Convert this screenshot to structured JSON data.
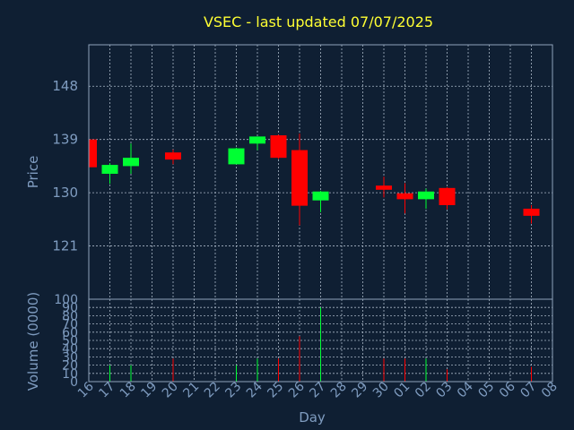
{
  "chart_data": {
    "type": "candlestick",
    "title": "VSEC - last updated 07/07/2025",
    "xlabel": "Day",
    "ylabel": "Price",
    "volume_label": "Volume (0000)",
    "price_ticks": [
      121,
      130,
      139,
      148
    ],
    "price_range": [
      112,
      155
    ],
    "volume_ticks": [
      0,
      10,
      20,
      30,
      40,
      50,
      60,
      70,
      80,
      90,
      100
    ],
    "volume_range": [
      0,
      100
    ],
    "x_labels": [
      "16",
      "17",
      "18",
      "19",
      "20",
      "21",
      "22",
      "23",
      "24",
      "25",
      "26",
      "27",
      "28",
      "29",
      "30",
      "01",
      "02",
      "03",
      "04",
      "05",
      "06",
      "07",
      "08"
    ],
    "colors": {
      "up": "#00ff33",
      "down": "#ff0000"
    },
    "candles": [
      {
        "day": "16",
        "open": 139.0,
        "high": 139.5,
        "low": 134.0,
        "close": 134.3,
        "volume": 0
      },
      {
        "day": "17",
        "open": 133.2,
        "high": 135.0,
        "low": 131.5,
        "close": 134.7,
        "volume": 20
      },
      {
        "day": "18",
        "open": 134.5,
        "high": 138.3,
        "low": 133.2,
        "close": 135.9,
        "volume": 20
      },
      {
        "day": "20",
        "open": 136.8,
        "high": 137.3,
        "low": 134.8,
        "close": 135.6,
        "volume": 28
      },
      {
        "day": "23",
        "open": 134.8,
        "high": 137.6,
        "low": 134.8,
        "close": 137.5,
        "volume": 20
      },
      {
        "day": "24",
        "open": 138.3,
        "high": 139.5,
        "low": 137.2,
        "close": 139.5,
        "volume": 28
      },
      {
        "day": "25",
        "open": 139.7,
        "high": 139.8,
        "low": 135.7,
        "close": 135.9,
        "volume": 28
      },
      {
        "day": "26",
        "open": 137.2,
        "high": 140.0,
        "low": 124.5,
        "close": 127.8,
        "volume": 55
      },
      {
        "day": "27",
        "open": 128.7,
        "high": 130.3,
        "low": 126.7,
        "close": 130.2,
        "volume": 90
      },
      {
        "day": "30",
        "open": 131.2,
        "high": 132.7,
        "low": 129.2,
        "close": 130.5,
        "volume": 28
      },
      {
        "day": "01",
        "open": 129.9,
        "high": 131.6,
        "low": 126.5,
        "close": 128.9,
        "volume": 28
      },
      {
        "day": "02",
        "open": 128.9,
        "high": 130.7,
        "low": 127.3,
        "close": 130.2,
        "volume": 28
      },
      {
        "day": "03",
        "open": 130.8,
        "high": 130.9,
        "low": 127.2,
        "close": 127.9,
        "volume": 15
      },
      {
        "day": "07",
        "open": 127.3,
        "high": 127.9,
        "low": 124.8,
        "close": 126.1,
        "volume": 18
      }
    ]
  }
}
